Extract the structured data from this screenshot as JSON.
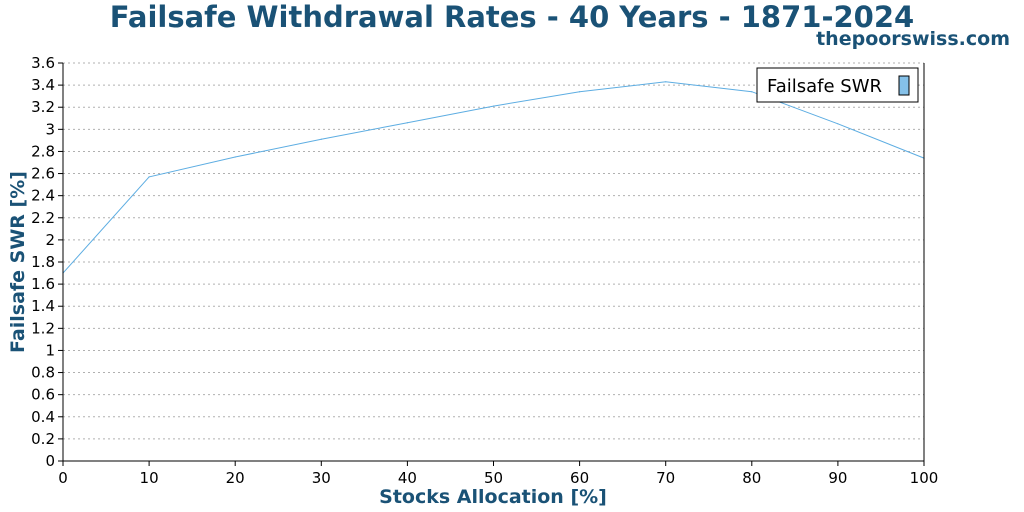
{
  "title": "Failsafe Withdrawal Rates - 40 Years - 1871-2024",
  "watermark": "thepoorswiss.com",
  "colors": {
    "title": "#1a5276",
    "series": "#5dade2",
    "legend_swatch": "#85c1e9",
    "grid": "#b0b0b0"
  },
  "chart_data": {
    "type": "line",
    "title": "Failsafe Withdrawal Rates - 40 Years - 1871-2024",
    "xlabel": "Stocks Allocation [%]",
    "ylabel": "Failsafe SWR [%]",
    "xlim": [
      0,
      100
    ],
    "ylim": [
      0,
      3.6
    ],
    "xticks": [
      0,
      10,
      20,
      30,
      40,
      50,
      60,
      70,
      80,
      90,
      100
    ],
    "yticks": [
      0,
      0.2,
      0.4,
      0.6,
      0.8,
      1,
      1.2,
      1.4,
      1.6,
      1.8,
      2,
      2.2,
      2.4,
      2.6,
      2.8,
      3,
      3.2,
      3.4,
      3.6
    ],
    "grid": "horizontal-dotted",
    "legend_position": "top-right",
    "series": [
      {
        "name": "Failsafe SWR",
        "x": [
          0,
          10,
          20,
          30,
          40,
          50,
          60,
          70,
          80,
          90,
          100
        ],
        "y": [
          1.7,
          2.57,
          2.75,
          2.91,
          3.06,
          3.21,
          3.34,
          3.43,
          3.34,
          3.05,
          2.74
        ]
      }
    ]
  }
}
